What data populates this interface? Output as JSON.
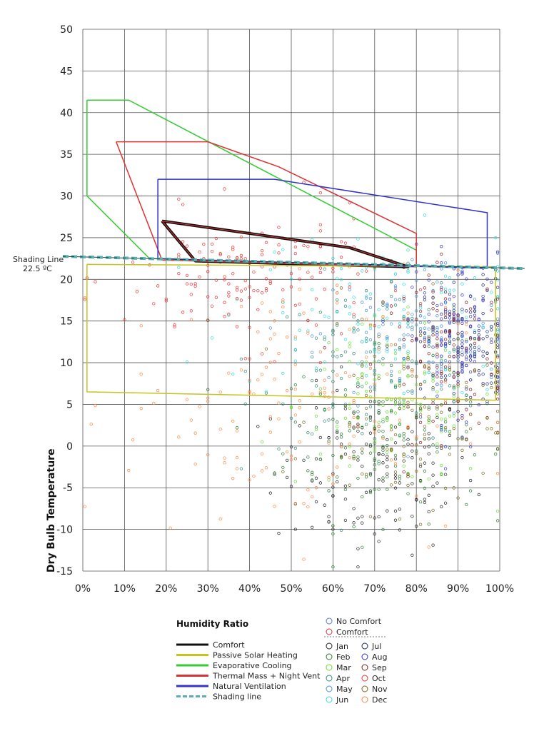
{
  "chart_data": {
    "type": "scatter",
    "title": "",
    "xlabel": "Humidity Ratio",
    "ylabel": "Dry Bulb Temperature",
    "xlim": [
      0,
      100
    ],
    "ylim": [
      -15,
      50
    ],
    "x_ticks": [
      "0%",
      "10%",
      "20%",
      "30%",
      "40%",
      "50%",
      "60%",
      "70%",
      "80%",
      "90%",
      "100%"
    ],
    "y_ticks": [
      "-15",
      "-10",
      "-5",
      "0",
      "5",
      "10",
      "15",
      "20",
      "25",
      "30",
      "35",
      "40",
      "45",
      "50"
    ],
    "grid": true,
    "shading_line": {
      "label": "Shading Line",
      "value_label": "22.5 ºC",
      "y": 22.5,
      "color": "#5aaeb0"
    },
    "zones": [
      {
        "name": "Comfort",
        "color": "#111111",
        "points": [
          [
            19,
            27
          ],
          [
            27,
            22.2
          ],
          [
            78,
            21.5
          ],
          [
            64,
            23.8
          ],
          [
            19,
            27
          ]
        ]
      },
      {
        "name": "Passive Solar Heating",
        "color": "#c8c21e",
        "points": [
          [
            1,
            21.8
          ],
          [
            99,
            21.5
          ],
          [
            99,
            5.5
          ],
          [
            1,
            6.5
          ],
          [
            1,
            21.8
          ]
        ]
      },
      {
        "name": "Evaporative Cooling",
        "color": "#33cc33",
        "points": [
          [
            1,
            41.5
          ],
          [
            11,
            41.5
          ],
          [
            80,
            23.5
          ],
          [
            80,
            21.5
          ],
          [
            16,
            22.5
          ],
          [
            1,
            30
          ],
          [
            1,
            41.5
          ]
        ]
      },
      {
        "name": "Thermal Mass + Night Vent",
        "color": "#dd3333",
        "points": [
          [
            8,
            36.5
          ],
          [
            30,
            36.5
          ],
          [
            47,
            33.5
          ],
          [
            80,
            25.5
          ],
          [
            80,
            21.5
          ],
          [
            19,
            22.3
          ],
          [
            8,
            36.5
          ]
        ]
      },
      {
        "name": "Natural Ventilation",
        "color": "#3333cc",
        "points": [
          [
            18,
            32
          ],
          [
            46,
            32
          ],
          [
            97,
            28
          ],
          [
            97,
            21.3
          ],
          [
            18,
            22.5
          ],
          [
            18,
            32
          ]
        ]
      }
    ],
    "legend": {
      "title": "Humidity Ratio",
      "lines": [
        "Comfort",
        "Passive Solar Heating",
        "Evaporative Cooling",
        "Thermal Mass + Night Vent",
        "Natural Ventilation",
        "Shading line"
      ],
      "markers": [
        {
          "label": "No Comfort",
          "color": "#5577cc"
        },
        {
          "label": "Comfort",
          "color": "#dd3333"
        }
      ],
      "months": [
        {
          "label": "Jan",
          "color": "#222222"
        },
        {
          "label": "Feb",
          "color": "#2e7d32"
        },
        {
          "label": "Mar",
          "color": "#66dd33"
        },
        {
          "label": "Apr",
          "color": "#2e8b74"
        },
        {
          "label": "May",
          "color": "#4a90e2"
        },
        {
          "label": "Jun",
          "color": "#33dddd"
        },
        {
          "label": "Jul",
          "color": "#1a237e"
        },
        {
          "label": "Aug",
          "color": "#3333cc"
        },
        {
          "label": "Sep",
          "color": "#8b1a1a"
        },
        {
          "label": "Oct",
          "color": "#ee3333"
        },
        {
          "label": "Nov",
          "color": "#7a6a1a"
        },
        {
          "label": "Dec",
          "color": "#ff8844"
        }
      ]
    },
    "point_clusters": [
      {
        "month": "Jan",
        "color": "#222222",
        "cx": 70,
        "cy": -3,
        "sx": 12,
        "sy": 5,
        "n": 150
      },
      {
        "month": "Feb",
        "color": "#2e7d32",
        "cx": 72,
        "cy": 1,
        "sx": 12,
        "sy": 5,
        "n": 140
      },
      {
        "month": "Mar",
        "color": "#66dd33",
        "cx": 75,
        "cy": 5,
        "sx": 12,
        "sy": 5,
        "n": 140
      },
      {
        "month": "Apr",
        "color": "#2e8b74",
        "cx": 70,
        "cy": 10,
        "sx": 14,
        "sy": 5,
        "n": 130
      },
      {
        "month": "May",
        "color": "#4a90e2",
        "cx": 80,
        "cy": 13,
        "sx": 12,
        "sy": 5,
        "n": 130
      },
      {
        "month": "Jun",
        "color": "#33dddd",
        "cx": 70,
        "cy": 16,
        "sx": 18,
        "sy": 5,
        "n": 120
      },
      {
        "month": "Jul",
        "color": "#1a237e",
        "cx": 92,
        "cy": 12,
        "sx": 5,
        "sy": 4,
        "n": 110
      },
      {
        "month": "Aug",
        "color": "#3333cc",
        "cx": 90,
        "cy": 13,
        "sx": 6,
        "sy": 5,
        "n": 130
      },
      {
        "month": "Sep",
        "color": "#8b1a1a",
        "cx": 88,
        "cy": 11,
        "sx": 8,
        "sy": 5,
        "n": 110
      },
      {
        "month": "Oct",
        "color": "#ee3333",
        "cx": 40,
        "cy": 20,
        "sx": 15,
        "sy": 4,
        "n": 150
      },
      {
        "month": "Nov",
        "color": "#7a6a1a",
        "cx": 80,
        "cy": 4,
        "sx": 12,
        "sy": 6,
        "n": 120
      },
      {
        "month": "Dec",
        "color": "#ff8844",
        "cx": 50,
        "cy": 5,
        "sx": 20,
        "sy": 8,
        "n": 160
      }
    ]
  }
}
